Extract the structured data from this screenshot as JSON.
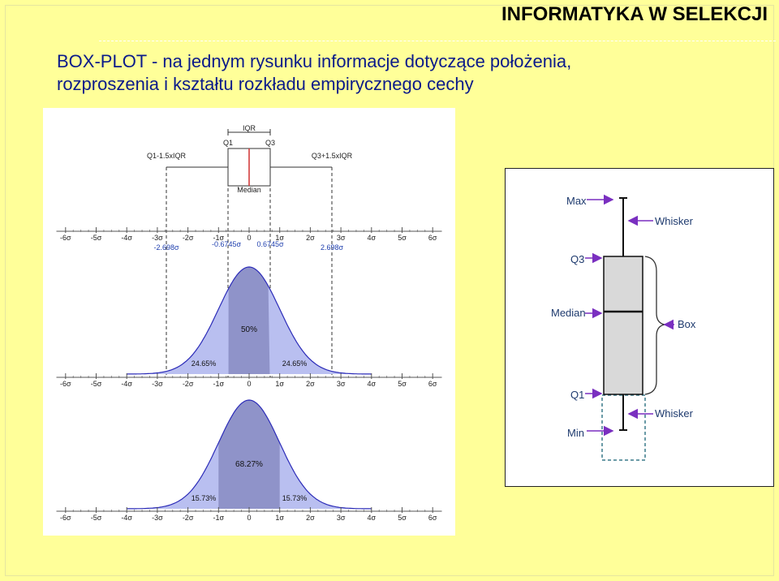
{
  "header": {
    "title": "INFORMATYKA W SELEKCJI"
  },
  "slide": {
    "title_line1": "BOX-PLOT - na jednym rysunku informacje dotyczące położenia,",
    "title_line2": "rozproszenia i kształtu rozkładu empirycznego cechy"
  },
  "left_figure": {
    "box_labels": {
      "iqr": "IQR",
      "q1": "Q1",
      "q3": "Q3",
      "median": "Median",
      "lower_fence": "Q1-1.5xIQR",
      "upper_fence": "Q3+1.5xIQR"
    },
    "sigma_ticks": [
      "-6σ",
      "-5σ",
      "-4σ",
      "-3σ",
      "-2σ",
      "-1σ",
      "0",
      "1σ",
      "2σ",
      "3σ",
      "4σ",
      "5σ",
      "6σ"
    ],
    "fence_values": {
      "low_fence": "-2.698σ",
      "q1": "-0.6745σ",
      "q3": "0.6745σ",
      "high_fence": "2.698σ"
    },
    "curve1_percents": {
      "center": "50%",
      "left": "24.65%",
      "right": "24.65%"
    },
    "curve2_percents": {
      "center": "68.27%",
      "left": "15.73%",
      "right": "15.73%"
    },
    "colors": {
      "curve_fill": "#b9bff0",
      "center_fill": "#8f93c9",
      "curve_stroke": "#2b2bb8",
      "median": "#d03030",
      "fence_text": "#1f3fae"
    }
  },
  "right_figure": {
    "labels": {
      "max": "Max",
      "whisker_top": "Whisker",
      "q3": "Q3",
      "median": "Median",
      "box": "Box",
      "q1": "Q1",
      "whisker_bottom": "Whisker",
      "min": "Min"
    },
    "colors": {
      "arrow": "#7a2fc0",
      "box_fill": "#d9d9d9",
      "label": "#1e3a6e",
      "dashed_box": "#3a7a8a"
    }
  }
}
